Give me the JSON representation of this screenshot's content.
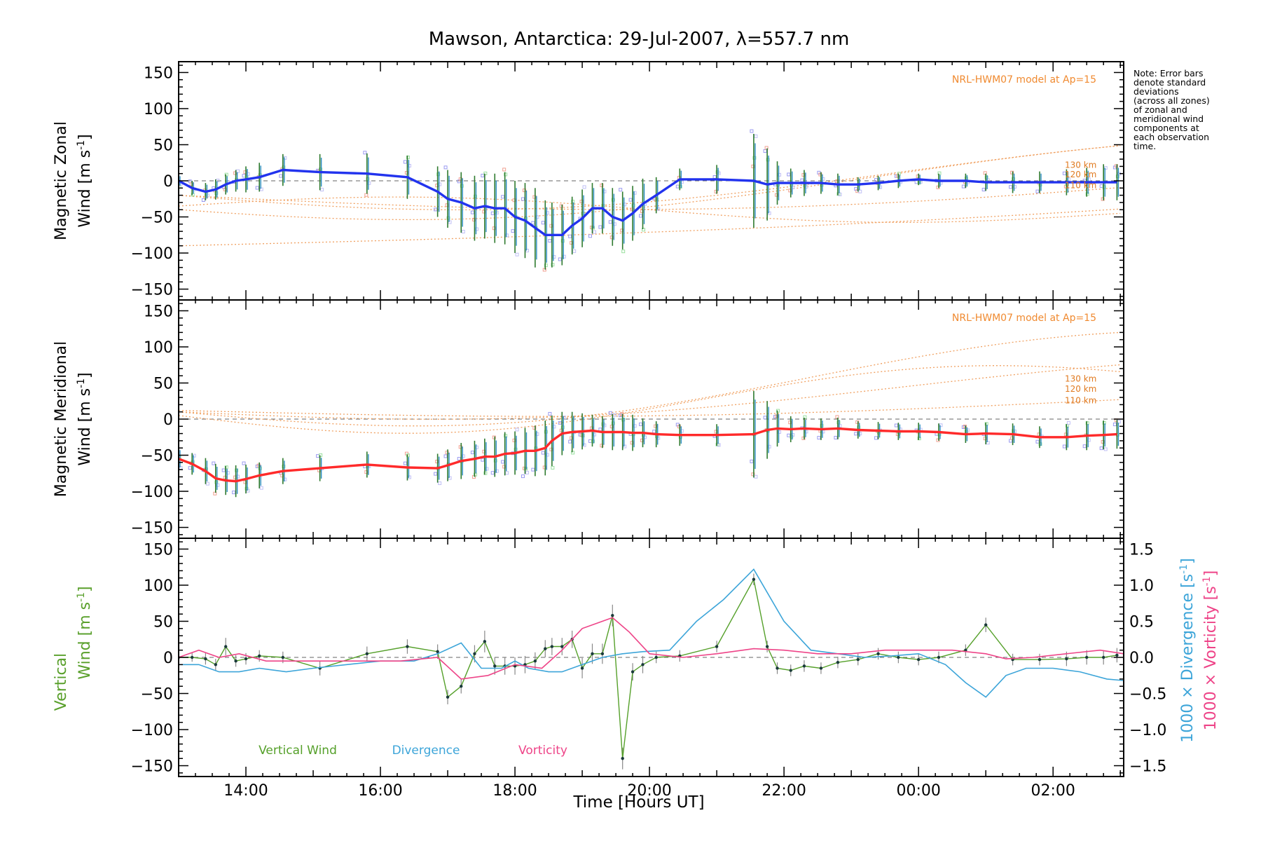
{
  "chart_data": {
    "type": "line",
    "title": "Mawson, Antarctica: 29-Jul-2007, λ=557.7 nm",
    "xlabel": "Time [Hours UT]",
    "xlim": [
      13.0,
      27.05
    ],
    "x_ticks": [
      {
        "v": 14,
        "label": "14:00"
      },
      {
        "v": 16,
        "label": "16:00"
      },
      {
        "v": 18,
        "label": "18:00"
      },
      {
        "v": 20,
        "label": "20:00"
      },
      {
        "v": 22,
        "label": "22:00"
      },
      {
        "v": 24,
        "label": "00:00"
      },
      {
        "v": 26,
        "label": "02:00"
      }
    ],
    "y_ticks": [
      150,
      100,
      50,
      0,
      -50,
      -100,
      -150
    ],
    "note": "Note: Error bars\ndenote standard\ndeviations\n(across all zones)\nof zonal and\nmeridional wind\ncomponents at\neach observation\ntime.",
    "model_label": "NRL-HWM07 model at Ap=15",
    "model_altitudes": [
      "130 km",
      "120 km",
      "110 km"
    ],
    "panels": [
      {
        "id": "zonal",
        "ylabel_line1": "Magnetic Zonal",
        "ylabel_line2": "Wind [m s",
        "ylabel_exp": "-1",
        "ylabel_close": "]",
        "ylim": [
          -165,
          165
        ],
        "color": "#2233ee",
        "series": [
          {
            "name": "Magnetic Zonal Wind",
            "x": [
              13.0,
              13.2,
              13.4,
              13.55,
              13.7,
              13.85,
              14.0,
              14.2,
              14.55,
              15.1,
              15.8,
              16.4,
              16.85,
              17.0,
              17.2,
              17.4,
              17.55,
              17.7,
              17.85,
              18.0,
              18.15,
              18.3,
              18.45,
              18.55,
              18.7,
              18.85,
              19.0,
              19.15,
              19.3,
              19.45,
              19.6,
              19.75,
              19.9,
              20.1,
              20.45,
              21.0,
              21.55,
              21.75,
              21.9,
              22.1,
              22.3,
              22.55,
              22.8,
              23.1,
              23.4,
              23.7,
              24.0,
              24.3,
              24.7,
              25.0,
              25.4,
              25.8,
              26.2,
              26.5,
              26.75,
              26.95
            ],
            "values": [
              0,
              -10,
              -15,
              -12,
              -5,
              0,
              2,
              5,
              15,
              12,
              10,
              5,
              -15,
              -25,
              -30,
              -38,
              -35,
              -38,
              -38,
              -50,
              -55,
              -65,
              -75,
              -75,
              -75,
              -62,
              -52,
              -38,
              -38,
              -50,
              -55,
              -45,
              -32,
              -20,
              2,
              2,
              0,
              -5,
              -3,
              -3,
              -3,
              -3,
              -5,
              -5,
              -3,
              0,
              2,
              0,
              0,
              -2,
              -2,
              -2,
              -2,
              -2,
              -2,
              -2
            ],
            "err": [
              8,
              10,
              12,
              14,
              14,
              15,
              18,
              20,
              22,
              25,
              28,
              30,
              35,
              40,
              42,
              45,
              45,
              48,
              50,
              50,
              52,
              55,
              48,
              45,
              42,
              40,
              40,
              35,
              35,
              40,
              40,
              38,
              35,
              25,
              15,
              20,
              65,
              50,
              30,
              20,
              18,
              15,
              15,
              10,
              10,
              10,
              8,
              10,
              10,
              12,
              15,
              15,
              18,
              20,
              25,
              25
            ]
          }
        ]
      },
      {
        "id": "meridional",
        "ylabel_line1": "Magnetic Meridional",
        "ylabel_line2": "Wind [m s",
        "ylabel_exp": "-1",
        "ylabel_close": "]",
        "ylim": [
          -165,
          165
        ],
        "color": "#ff2a2a",
        "series": [
          {
            "name": "Magnetic Meridional Wind",
            "x": [
              13.0,
              13.2,
              13.4,
              13.55,
              13.7,
              13.85,
              14.0,
              14.2,
              14.55,
              15.1,
              15.8,
              16.4,
              16.85,
              17.0,
              17.2,
              17.4,
              17.55,
              17.7,
              17.85,
              18.0,
              18.15,
              18.3,
              18.45,
              18.55,
              18.7,
              18.85,
              19.0,
              19.15,
              19.3,
              19.45,
              19.6,
              19.75,
              19.9,
              20.1,
              20.45,
              21.0,
              21.55,
              21.75,
              21.9,
              22.1,
              22.3,
              22.55,
              22.8,
              23.1,
              23.4,
              23.7,
              24.0,
              24.3,
              24.7,
              25.0,
              25.4,
              25.8,
              26.2,
              26.5,
              26.75,
              26.95
            ],
            "values": [
              -55,
              -62,
              -72,
              -82,
              -85,
              -86,
              -83,
              -78,
              -72,
              -68,
              -63,
              -67,
              -68,
              -64,
              -58,
              -55,
              -52,
              -52,
              -48,
              -47,
              -44,
              -44,
              -40,
              -30,
              -20,
              -18,
              -17,
              -16,
              -18,
              -18,
              -18,
              -19,
              -19,
              -21,
              -22,
              -22,
              -21,
              -15,
              -13,
              -14,
              -13,
              -14,
              -13,
              -15,
              -16,
              -17,
              -17,
              -18,
              -21,
              -20,
              -21,
              -25,
              -25,
              -23,
              -22,
              -21
            ],
            "err": [
              15,
              15,
              18,
              20,
              20,
              22,
              20,
              18,
              18,
              18,
              18,
              18,
              20,
              22,
              25,
              25,
              25,
              28,
              30,
              30,
              32,
              35,
              38,
              35,
              30,
              28,
              25,
              22,
              22,
              25,
              25,
              25,
              20,
              18,
              15,
              15,
              60,
              40,
              25,
              18,
              15,
              15,
              15,
              12,
              12,
              12,
              12,
              12,
              12,
              15,
              15,
              15,
              18,
              20,
              20,
              20
            ]
          }
        ]
      },
      {
        "id": "vertical",
        "ylabel_line1": "Vertical",
        "ylabel_line2": "Wind [m s",
        "ylabel_exp": "-1",
        "ylabel_close": "]",
        "ylim": [
          -165,
          165
        ],
        "right_axis_divergence_label": "1000 × Divergence [s",
        "right_axis_vorticity_label": "1000 × Vorticity [s",
        "right_axis_exp": "-1",
        "right_axis_close": "]",
        "right_ylim": [
          -1.65,
          1.65
        ],
        "right_ticks": [
          1.5,
          1.0,
          0.5,
          0.0,
          -0.5,
          -1.0,
          -1.5
        ],
        "right_tick_labels": [
          "1.5",
          "1.0",
          "0.5",
          "0.0",
          "−0.5",
          "−1.0",
          "−1.5"
        ],
        "legend": [
          "Vertical Wind",
          "Divergence",
          "Vorticity"
        ],
        "series": [
          {
            "name": "Vertical Wind",
            "color": "#55a02a",
            "x": [
              13.0,
              13.2,
              13.4,
              13.55,
              13.7,
              13.85,
              14.0,
              14.2,
              14.55,
              15.1,
              15.8,
              16.4,
              16.85,
              17.0,
              17.2,
              17.4,
              17.55,
              17.7,
              17.85,
              18.0,
              18.15,
              18.3,
              18.45,
              18.55,
              18.7,
              18.85,
              19.0,
              19.15,
              19.3,
              19.45,
              19.6,
              19.75,
              19.9,
              20.1,
              20.45,
              21.0,
              21.55,
              21.75,
              21.9,
              22.1,
              22.3,
              22.55,
              22.8,
              23.1,
              23.4,
              23.7,
              24.0,
              24.3,
              24.7,
              25.0,
              25.4,
              25.8,
              26.2,
              26.5,
              26.75,
              26.95
            ],
            "values": [
              0,
              0,
              -2,
              -10,
              15,
              -5,
              -2,
              2,
              0,
              -15,
              5,
              15,
              8,
              -55,
              -40,
              5,
              22,
              -12,
              -12,
              -12,
              -10,
              -5,
              12,
              15,
              15,
              25,
              -15,
              5,
              5,
              58,
              -140,
              -20,
              -10,
              0,
              2,
              15,
              108,
              15,
              -15,
              -18,
              -12,
              -15,
              -7,
              -3,
              5,
              0,
              -3,
              0,
              10,
              45,
              -3,
              -3,
              -2,
              0,
              0,
              3
            ],
            "err": [
              6,
              6,
              8,
              8,
              12,
              8,
              8,
              8,
              8,
              10,
              10,
              10,
              10,
              10,
              10,
              12,
              15,
              12,
              12,
              12,
              12,
              12,
              12,
              12,
              12,
              12,
              14,
              14,
              14,
              15,
              15,
              12,
              12,
              8,
              8,
              8,
              8,
              8,
              8,
              8,
              8,
              8,
              8,
              8,
              8,
              8,
              8,
              8,
              8,
              10,
              8,
              8,
              10,
              10,
              10,
              10
            ]
          },
          {
            "name": "Divergence",
            "color": "#3da5d9",
            "x": [
              13.0,
              13.3,
              13.6,
              13.9,
              14.2,
              14.6,
              15.0,
              15.5,
              16.0,
              16.5,
              16.85,
              17.2,
              17.5,
              17.8,
              18.0,
              18.2,
              18.5,
              18.7,
              19.0,
              19.3,
              19.6,
              19.9,
              20.3,
              20.7,
              21.1,
              21.55,
              22.0,
              22.4,
              22.8,
              23.2,
              23.6,
              24.0,
              24.4,
              24.7,
              25.0,
              25.3,
              25.6,
              26.0,
              26.4,
              26.8,
              27.05
            ],
            "values": [
              -0.1,
              -0.1,
              -0.2,
              -0.2,
              -0.15,
              -0.2,
              -0.15,
              -0.1,
              -0.05,
              -0.05,
              0.05,
              0.2,
              -0.15,
              -0.15,
              -0.05,
              -0.15,
              -0.2,
              -0.2,
              -0.1,
              0.0,
              0.05,
              0.08,
              0.1,
              0.5,
              0.8,
              1.22,
              0.5,
              0.1,
              0.05,
              0.0,
              0.02,
              0.05,
              -0.1,
              -0.35,
              -0.55,
              -0.25,
              -0.15,
              -0.15,
              -0.2,
              -0.3,
              -0.32
            ]
          },
          {
            "name": "Vorticity",
            "color": "#ee4488",
            "x": [
              13.0,
              13.3,
              13.6,
              13.9,
              14.3,
              14.8,
              15.3,
              15.8,
              16.3,
              16.85,
              17.2,
              17.6,
              18.0,
              18.4,
              18.7,
              19.0,
              19.45,
              19.7,
              20.0,
              20.5,
              21.0,
              21.55,
              22.0,
              22.5,
              23.0,
              23.5,
              24.0,
              24.5,
              25.0,
              25.3,
              25.7,
              26.2,
              26.7,
              27.05
            ],
            "values": [
              0.0,
              0.1,
              0.0,
              0.05,
              -0.05,
              -0.05,
              -0.05,
              -0.05,
              -0.05,
              0.0,
              -0.3,
              -0.25,
              -0.1,
              -0.15,
              0.1,
              0.4,
              0.55,
              0.35,
              0.05,
              0.0,
              0.05,
              0.12,
              0.1,
              0.05,
              0.05,
              0.1,
              0.1,
              0.1,
              0.05,
              -0.02,
              0.0,
              0.05,
              0.1,
              0.05
            ]
          }
        ]
      }
    ]
  }
}
